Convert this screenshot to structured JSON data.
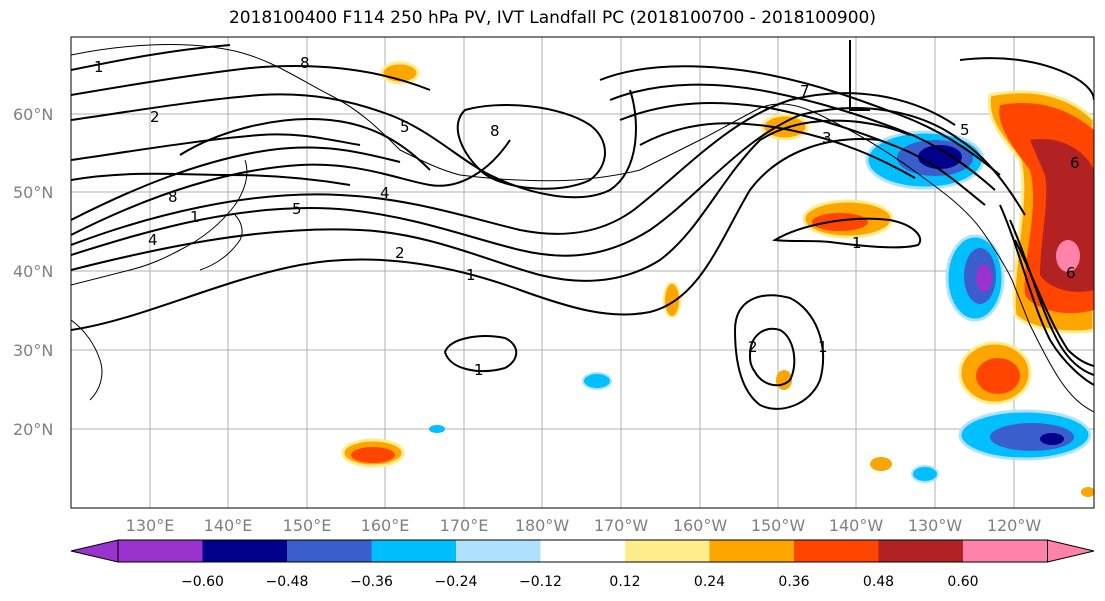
{
  "title": "2018100400 F114 250 hPa PV, IVT Landfall PC (2018100700 - 2018100900)",
  "lat_labels": [
    "60°N",
    "50°N",
    "40°N",
    "30°N",
    "20°N"
  ],
  "lon_labels": [
    "130°E",
    "140°E",
    "150°E",
    "160°E",
    "170°E",
    "180°W",
    "170°W",
    "160°W",
    "150°W",
    "140°W",
    "130°W",
    "120°W"
  ],
  "colorbar": {
    "colors": [
      "#9a32cd",
      "#00008b",
      "#3a5fcd",
      "#00bfff",
      "#b0e2ff",
      "#ffffff",
      "#ffec8b",
      "#ffa500",
      "#ff4500",
      "#b22222",
      "#ff82ab"
    ],
    "ticks": [
      "−0.60",
      "−0.48",
      "−0.36",
      "−0.24",
      "−0.12",
      "0.12",
      "0.24",
      "0.36",
      "0.48",
      "0.60"
    ]
  },
  "contour_labels": {
    "c1": "1",
    "c2": "2",
    "c3": "4",
    "c4": "5",
    "c5": "8",
    "c6": "1",
    "c7": "8",
    "c8": "4",
    "c9": "5",
    "c10": "8",
    "c11": "2",
    "c12": "1",
    "c13": "1",
    "c14": "1",
    "c15": "3",
    "c16": "7",
    "c17": "5",
    "c18": "6",
    "c19": "2",
    "c20": "1",
    "c21": "6"
  }
}
